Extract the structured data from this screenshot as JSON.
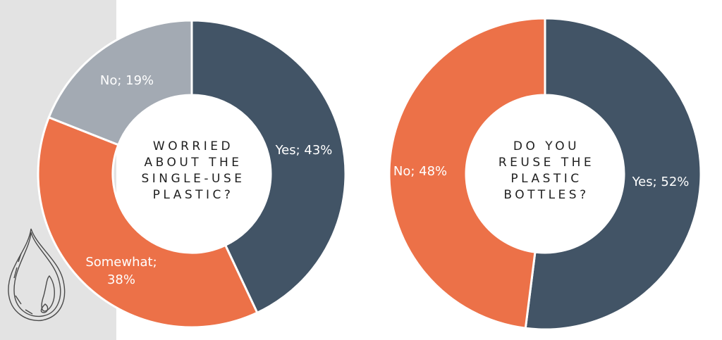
{
  "colors": {
    "yes": "#425466",
    "somewhat": "#ec7148",
    "no_gray": "#a3aab3",
    "no_orange": "#ec7148",
    "side_panel": "#e3e3e3"
  },
  "chart_data": [
    {
      "type": "pie",
      "style": "donut",
      "center_text": [
        "WORRIED",
        "ABOUT THE",
        "SINGLE-USE",
        "PLASTIC?"
      ],
      "slices": [
        {
          "label": "Yes; 43%",
          "name": "Yes",
          "value": 43,
          "color": "#425466"
        },
        {
          "label_lines": [
            "Somewhat;",
            "38%"
          ],
          "name": "Somewhat",
          "value": 38,
          "color": "#ec7148"
        },
        {
          "label": "No; 19%",
          "name": "No",
          "value": 19,
          "color": "#a3aab3"
        }
      ]
    },
    {
      "type": "pie",
      "style": "donut",
      "center_text": [
        "DO YOU",
        "REUSE THE",
        "PLASTIC",
        "BOTTLES?"
      ],
      "slices": [
        {
          "label": "Yes; 52%",
          "name": "Yes",
          "value": 52,
          "color": "#425466"
        },
        {
          "label": "No; 48%",
          "name": "No",
          "value": 48,
          "color": "#ec7148"
        }
      ]
    }
  ],
  "decor": {
    "side_icon": "water-drop-sketch-icon"
  }
}
